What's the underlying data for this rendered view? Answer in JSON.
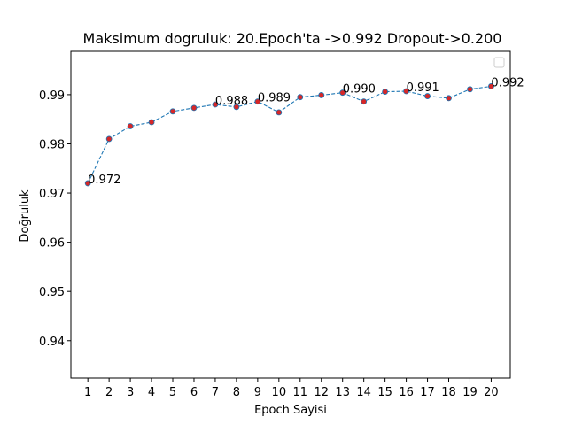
{
  "chart_data": {
    "type": "line",
    "title": "Maksimum dogruluk: 20.Epoch'ta ->0.992 Dropout->0.200",
    "xlabel": "Epoch Sayisi",
    "ylabel": "Doğruluk",
    "x": [
      1,
      2,
      3,
      4,
      5,
      6,
      7,
      8,
      9,
      10,
      11,
      12,
      13,
      14,
      15,
      16,
      17,
      18,
      19,
      20
    ],
    "series": [
      {
        "values": [
          0.972,
          0.981,
          0.9836,
          0.9844,
          0.9866,
          0.9873,
          0.988,
          0.9875,
          0.9886,
          0.9864,
          0.9895,
          0.9899,
          0.9904,
          0.9886,
          0.9906,
          0.9907,
          0.9897,
          0.9893,
          0.9911,
          0.9917
        ],
        "line_color": "#1f77b4",
        "marker_color": "#d62728",
        "line_style": "dashed"
      }
    ],
    "annotations": [
      {
        "x": 1,
        "y": 0.972,
        "text": "0.972"
      },
      {
        "x": 7,
        "y": 0.988,
        "text": "0.988"
      },
      {
        "x": 9,
        "y": 0.9886,
        "text": "0.989"
      },
      {
        "x": 13,
        "y": 0.9904,
        "text": "0.990"
      },
      {
        "x": 16,
        "y": 0.9907,
        "text": "0.991"
      },
      {
        "x": 20,
        "y": 0.9917,
        "text": "0.992"
      }
    ],
    "xlim": [
      0.2,
      20.9
    ],
    "ylim": [
      0.9324,
      0.9988
    ],
    "xticks": [
      1,
      2,
      3,
      4,
      5,
      6,
      7,
      8,
      9,
      10,
      11,
      12,
      13,
      14,
      15,
      16,
      17,
      18,
      19,
      20
    ],
    "yticks": [
      0.94,
      0.95,
      0.96,
      0.97,
      0.98,
      0.99
    ],
    "ytick_labels": [
      "0.94",
      "0.95",
      "0.96",
      "0.97",
      "0.98",
      "0.99"
    ],
    "grid": false,
    "legend": "top-right (empty)"
  }
}
